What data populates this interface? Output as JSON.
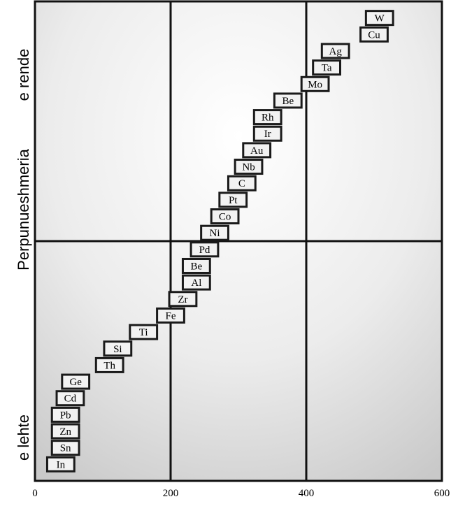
{
  "chart_data": {
    "type": "scatter",
    "title": "",
    "xlabel": "",
    "ylabel": "Perpunueshmeria",
    "y_top_label": "e rende",
    "y_bottom_label": "e lehte",
    "xlim": [
      0,
      600
    ],
    "ylim": [
      0,
      29
    ],
    "x_ticks": [
      0,
      200,
      400,
      600
    ],
    "x_tick_labels": [
      "0",
      "200",
      "400",
      "600"
    ],
    "grid": true,
    "background": "radial-gradient light gray",
    "box_stroke_color": "#1a1a1a",
    "box_fill_color": "#f2f2f2",
    "elements": [
      {
        "label": "In",
        "x_start": 18,
        "x_end": 58,
        "rank": 1
      },
      {
        "label": "Sn",
        "x_start": 25,
        "x_end": 65,
        "rank": 2
      },
      {
        "label": "Zn",
        "x_start": 25,
        "x_end": 65,
        "rank": 3
      },
      {
        "label": "Pb",
        "x_start": 25,
        "x_end": 65,
        "rank": 4
      },
      {
        "label": "Cd",
        "x_start": 32,
        "x_end": 72,
        "rank": 5
      },
      {
        "label": "Ge",
        "x_start": 40,
        "x_end": 80,
        "rank": 6
      },
      {
        "label": "Th",
        "x_start": 90,
        "x_end": 130,
        "rank": 7
      },
      {
        "label": "Si",
        "x_start": 102,
        "x_end": 142,
        "rank": 8
      },
      {
        "label": "Ti",
        "x_start": 140,
        "x_end": 180,
        "rank": 9
      },
      {
        "label": "Fe",
        "x_start": 180,
        "x_end": 220,
        "rank": 10
      },
      {
        "label": "Zr",
        "x_start": 198,
        "x_end": 238,
        "rank": 11
      },
      {
        "label": "Al",
        "x_start": 218,
        "x_end": 258,
        "rank": 12
      },
      {
        "label": "Be",
        "x_start": 218,
        "x_end": 258,
        "rank": 13
      },
      {
        "label": "Pd",
        "x_start": 230,
        "x_end": 270,
        "rank": 14
      },
      {
        "label": "Ni",
        "x_start": 245,
        "x_end": 285,
        "rank": 15
      },
      {
        "label": "Co",
        "x_start": 260,
        "x_end": 300,
        "rank": 16
      },
      {
        "label": "Pt",
        "x_start": 272,
        "x_end": 312,
        "rank": 17
      },
      {
        "label": "C",
        "x_start": 285,
        "x_end": 325,
        "rank": 18
      },
      {
        "label": "Nb",
        "x_start": 295,
        "x_end": 335,
        "rank": 19
      },
      {
        "label": "Au",
        "x_start": 307,
        "x_end": 347,
        "rank": 20
      },
      {
        "label": "Ir",
        "x_start": 323,
        "x_end": 363,
        "rank": 21
      },
      {
        "label": "Rh",
        "x_start": 323,
        "x_end": 363,
        "rank": 22
      },
      {
        "label": "Be",
        "x_start": 353,
        "x_end": 393,
        "rank": 23
      },
      {
        "label": "Mo",
        "x_start": 393,
        "x_end": 433,
        "rank": 24
      },
      {
        "label": "Ta",
        "x_start": 410,
        "x_end": 450,
        "rank": 25
      },
      {
        "label": "Ag",
        "x_start": 423,
        "x_end": 463,
        "rank": 26
      },
      {
        "label": "Cu",
        "x_start": 480,
        "x_end": 520,
        "rank": 27
      },
      {
        "label": "W",
        "x_start": 488,
        "x_end": 528,
        "rank": 28
      }
    ]
  }
}
